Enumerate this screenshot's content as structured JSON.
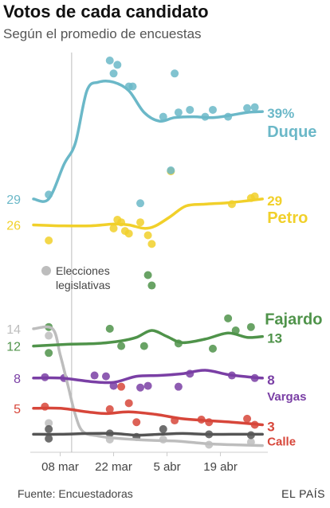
{
  "header": {
    "title": "Votos de cada candidato",
    "subtitle": "Según el promedio de encuestas"
  },
  "footer": {
    "source": "Fuente: Encuestadoras",
    "brand": "EL PAÍS"
  },
  "annotations": {
    "event_label_line1": "Elecciones",
    "event_label_line2": "legislativas"
  },
  "chart_data": {
    "type": "line",
    "title": "Votos de cada candidato",
    "subtitle": "Según el promedio de encuestas",
    "xlabel": "",
    "ylabel": "",
    "x_unit": "day (2018)",
    "xlim": [
      "2018-03-01",
      "2018-05-01"
    ],
    "ylim": [
      0,
      45
    ],
    "x_ticks": [
      {
        "date": "2018-03-08",
        "label": "08 mar"
      },
      {
        "date": "2018-03-22",
        "label": "22 mar"
      },
      {
        "date": "2018-04-05",
        "label": "5 abr"
      },
      {
        "date": "2018-04-19",
        "label": "19 abr"
      }
    ],
    "event": {
      "date": "2018-03-11",
      "label": "Elecciones legislativas"
    },
    "grid": false,
    "legend": "inline labels at line ends",
    "series": [
      {
        "name": "Duque",
        "color": "#6bb8c8",
        "start_label": "29",
        "end_label": "39%",
        "points": [
          [
            "2018-03-01",
            29
          ],
          [
            "2018-03-05",
            29
          ],
          [
            "2018-03-09",
            33
          ],
          [
            "2018-03-12",
            35.5
          ],
          [
            "2018-03-15",
            41.5
          ],
          [
            "2018-03-18",
            42.5
          ],
          [
            "2018-03-22",
            42.5
          ],
          [
            "2018-03-26",
            41.5
          ],
          [
            "2018-03-30",
            39
          ],
          [
            "2018-04-03",
            38
          ],
          [
            "2018-04-07",
            38.4
          ],
          [
            "2018-04-12",
            38.5
          ],
          [
            "2018-04-17",
            38.4
          ],
          [
            "2018-04-22",
            38.7
          ],
          [
            "2018-04-26",
            39
          ],
          [
            "2018-04-30",
            39.1
          ]
        ],
        "polls": [
          [
            "2018-03-05",
            29.5
          ],
          [
            "2018-03-21",
            45
          ],
          [
            "2018-03-23",
            44.5
          ],
          [
            "2018-03-22",
            43.5
          ],
          [
            "2018-03-26",
            42
          ],
          [
            "2018-03-27",
            42
          ],
          [
            "2018-04-04",
            38.5
          ],
          [
            "2018-04-07",
            43.5
          ],
          [
            "2018-04-08",
            39
          ],
          [
            "2018-04-11",
            39.3
          ],
          [
            "2018-04-15",
            38.5
          ],
          [
            "2018-04-21",
            38.5
          ],
          [
            "2018-04-26",
            39.5
          ],
          [
            "2018-04-28",
            39.6
          ],
          [
            "2018-04-17",
            39.3
          ],
          [
            "2018-04-06",
            32.3
          ],
          [
            "2018-03-29",
            28.5
          ]
        ]
      },
      {
        "name": "Petro",
        "color": "#f1d02a",
        "start_label": "26",
        "end_label": "29",
        "points": [
          [
            "2018-03-01",
            26
          ],
          [
            "2018-03-08",
            25.9
          ],
          [
            "2018-03-16",
            25.9
          ],
          [
            "2018-03-22",
            26.1
          ],
          [
            "2018-03-26",
            26
          ],
          [
            "2018-03-30",
            25.6
          ],
          [
            "2018-04-02",
            25.9
          ],
          [
            "2018-04-06",
            27
          ],
          [
            "2018-04-10",
            28.2
          ],
          [
            "2018-04-15",
            28.4
          ],
          [
            "2018-04-22",
            28.6
          ],
          [
            "2018-04-30",
            29
          ]
        ],
        "polls": [
          [
            "2018-03-05",
            24.2
          ],
          [
            "2018-03-22",
            25.6
          ],
          [
            "2018-03-23",
            26.6
          ],
          [
            "2018-03-24",
            26.3
          ],
          [
            "2018-03-25",
            25.3
          ],
          [
            "2018-03-26",
            25
          ],
          [
            "2018-03-29",
            26.3
          ],
          [
            "2018-03-31",
            24.8
          ],
          [
            "2018-04-01",
            23.8
          ],
          [
            "2018-04-06",
            32.2
          ],
          [
            "2018-04-22",
            28.4
          ],
          [
            "2018-04-27",
            29.1
          ],
          [
            "2018-04-28",
            29.3
          ]
        ]
      },
      {
        "name": "Fajardo",
        "color": "#4f934a",
        "start_label": "12",
        "end_label": "13",
        "points": [
          [
            "2018-03-01",
            12
          ],
          [
            "2018-03-10",
            12.2
          ],
          [
            "2018-03-18",
            12.3
          ],
          [
            "2018-03-24",
            12.6
          ],
          [
            "2018-03-28",
            13
          ],
          [
            "2018-04-01",
            13.8
          ],
          [
            "2018-04-05",
            13.1
          ],
          [
            "2018-04-09",
            12.4
          ],
          [
            "2018-04-15",
            12.8
          ],
          [
            "2018-04-21",
            13.5
          ],
          [
            "2018-04-26",
            13
          ],
          [
            "2018-04-30",
            13.1
          ]
        ],
        "polls": [
          [
            "2018-03-05",
            14.2
          ],
          [
            "2018-03-05",
            11.2
          ],
          [
            "2018-03-21",
            14
          ],
          [
            "2018-03-24",
            12
          ],
          [
            "2018-03-30",
            12
          ],
          [
            "2018-03-31",
            20.2
          ],
          [
            "2018-04-01",
            19
          ],
          [
            "2018-04-08",
            12.3
          ],
          [
            "2018-04-17",
            11.7
          ],
          [
            "2018-04-21",
            15.2
          ],
          [
            "2018-04-23",
            13.8
          ],
          [
            "2018-04-27",
            14.2
          ]
        ]
      },
      {
        "name": "Vargas",
        "color": "#7a3fa5",
        "start_label": "8",
        "end_label": "8",
        "points": [
          [
            "2018-03-01",
            8.3
          ],
          [
            "2018-03-08",
            8.3
          ],
          [
            "2018-03-16",
            7.9
          ],
          [
            "2018-03-22",
            7.8
          ],
          [
            "2018-03-28",
            8.5
          ],
          [
            "2018-04-03",
            8.6
          ],
          [
            "2018-04-09",
            8.8
          ],
          [
            "2018-04-15",
            9.2
          ],
          [
            "2018-04-21",
            8.7
          ],
          [
            "2018-04-27",
            8.4
          ],
          [
            "2018-04-30",
            8.3
          ]
        ],
        "polls": [
          [
            "2018-03-04",
            8.4
          ],
          [
            "2018-03-09",
            8.3
          ],
          [
            "2018-03-17",
            8.6
          ],
          [
            "2018-03-20",
            8.5
          ],
          [
            "2018-03-22",
            7.4
          ],
          [
            "2018-03-29",
            7.2
          ],
          [
            "2018-03-31",
            7.4
          ],
          [
            "2018-04-08",
            7.3
          ],
          [
            "2018-04-11",
            8.8
          ],
          [
            "2018-04-22",
            8.6
          ],
          [
            "2018-04-28",
            8.3
          ]
        ]
      },
      {
        "name": "Calle",
        "color": "#d7463a",
        "start_label": "5",
        "end_label": "3",
        "points": [
          [
            "2018-03-01",
            4.8
          ],
          [
            "2018-03-08",
            4.8
          ],
          [
            "2018-03-15",
            4.4
          ],
          [
            "2018-03-20",
            4.2
          ],
          [
            "2018-03-26",
            4.4
          ],
          [
            "2018-04-02",
            4.1
          ],
          [
            "2018-04-09",
            3.6
          ],
          [
            "2018-04-15",
            3.4
          ],
          [
            "2018-04-22",
            3.2
          ],
          [
            "2018-04-30",
            2.9
          ]
        ],
        "polls": [
          [
            "2018-03-04",
            5
          ],
          [
            "2018-03-21",
            4.7
          ],
          [
            "2018-03-24",
            7.3
          ],
          [
            "2018-03-26",
            5.4
          ],
          [
            "2018-03-28",
            3.2
          ],
          [
            "2018-04-07",
            3.4
          ],
          [
            "2018-04-14",
            3.5
          ],
          [
            "2018-04-16",
            3.2
          ],
          [
            "2018-04-26",
            3.6
          ],
          [
            "2018-04-28",
            2.9
          ]
        ]
      },
      {
        "name": "",
        "color": "#555555",
        "start_label": "",
        "end_label": "",
        "points": [
          [
            "2018-03-01",
            1.8
          ],
          [
            "2018-03-08",
            1.8
          ],
          [
            "2018-03-16",
            1.9
          ],
          [
            "2018-03-22",
            1.9
          ],
          [
            "2018-03-28",
            1.7
          ],
          [
            "2018-04-03",
            1.8
          ],
          [
            "2018-04-09",
            1.9
          ],
          [
            "2018-04-15",
            1.8
          ],
          [
            "2018-04-22",
            1.8
          ],
          [
            "2018-04-30",
            1.8
          ]
        ],
        "polls": [
          [
            "2018-03-05",
            2.4
          ],
          [
            "2018-03-05",
            1.3
          ],
          [
            "2018-03-21",
            1.9
          ],
          [
            "2018-03-28",
            1.5
          ],
          [
            "2018-04-04",
            2.4
          ],
          [
            "2018-04-16",
            1.8
          ],
          [
            "2018-04-27",
            1.7
          ]
        ]
      },
      {
        "name": "",
        "color": "#bdbdbd",
        "start_label": "14",
        "end_label": "",
        "points": [
          [
            "2018-03-01",
            14
          ],
          [
            "2018-03-06",
            14
          ],
          [
            "2018-03-08",
            11
          ],
          [
            "2018-03-10",
            7.5
          ],
          [
            "2018-03-12",
            4
          ],
          [
            "2018-03-14",
            2.1
          ],
          [
            "2018-03-18",
            1.6
          ],
          [
            "2018-03-24",
            1.3
          ],
          [
            "2018-04-01",
            1.1
          ],
          [
            "2018-04-08",
            1
          ],
          [
            "2018-04-16",
            0.7
          ],
          [
            "2018-04-22",
            0.6
          ],
          [
            "2018-04-30",
            0.5
          ]
        ],
        "polls": [
          [
            "2018-03-05",
            13.2
          ],
          [
            "2018-03-05",
            3.1
          ],
          [
            "2018-03-21",
            1.2
          ],
          [
            "2018-04-04",
            1.2
          ],
          [
            "2018-04-16",
            0.6
          ],
          [
            "2018-04-27",
            0.9
          ]
        ]
      }
    ]
  }
}
